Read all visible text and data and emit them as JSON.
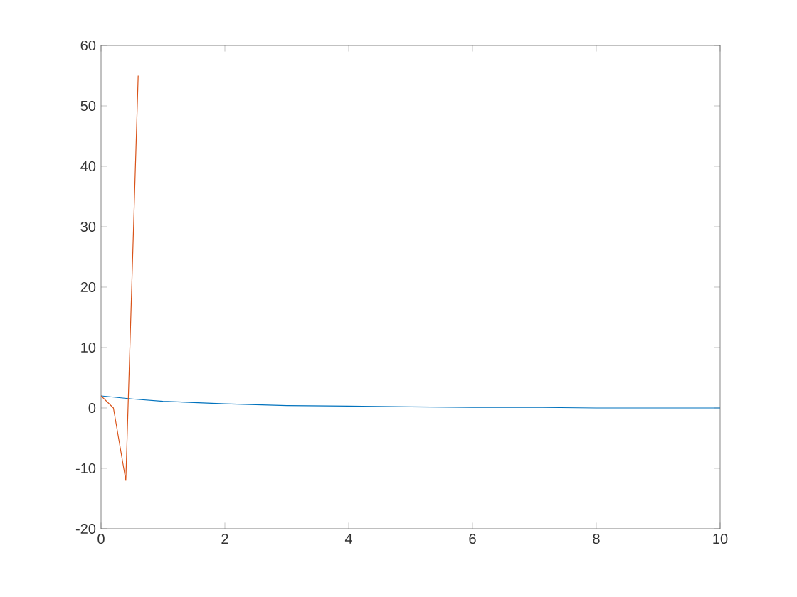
{
  "chart_data": {
    "type": "line",
    "xlim": [
      0,
      10
    ],
    "ylim": [
      -20,
      60
    ],
    "xticks": [
      0,
      2,
      4,
      6,
      8,
      10
    ],
    "yticks": [
      -20,
      -10,
      0,
      10,
      20,
      30,
      40,
      50,
      60
    ],
    "grid": false,
    "series": [
      {
        "color": "#0072bd",
        "x": [
          0,
          0.5,
          1,
          1.5,
          2,
          3,
          4,
          5,
          6,
          7,
          8,
          9,
          10
        ],
        "values": [
          2,
          1.5,
          1.1,
          0.9,
          0.7,
          0.4,
          0.3,
          0.2,
          0.1,
          0.1,
          0,
          0,
          0
        ]
      },
      {
        "color": "#d95319",
        "x": [
          0,
          0.2,
          0.4,
          0.6
        ],
        "values": [
          2,
          0,
          -12,
          55
        ]
      }
    ]
  }
}
